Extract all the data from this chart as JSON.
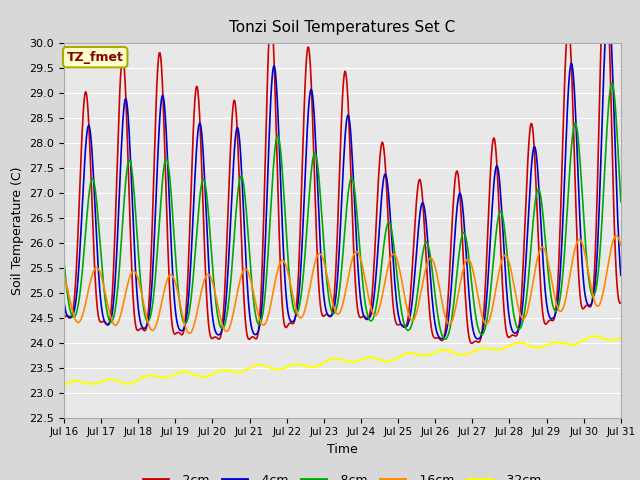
{
  "title": "Tonzi Soil Temperatures Set C",
  "xlabel": "Time",
  "ylabel": "Soil Temperature (C)",
  "annotation": "TZ_fmet",
  "annotation_bg": "#FFFFCC",
  "annotation_border": "#AAAA00",
  "annotation_color": "#880000",
  "ylim": [
    22.5,
    30.0
  ],
  "yticks": [
    22.5,
    23.0,
    23.5,
    24.0,
    24.5,
    25.0,
    25.5,
    26.0,
    26.5,
    27.0,
    27.5,
    28.0,
    28.5,
    29.0,
    29.5,
    30.0
  ],
  "xtick_labels": [
    "Jul 16",
    "Jul 17",
    "Jul 18",
    "Jul 19",
    "Jul 20",
    "Jul 21",
    "Jul 22",
    "Jul 23",
    "Jul 24",
    "Jul 25",
    "Jul 26",
    "Jul 27",
    "Jul 28",
    "Jul 29",
    "Jul 30",
    "Jul 31"
  ],
  "series": [
    {
      "label": "-2cm",
      "color": "#CC0000",
      "linewidth": 1.2
    },
    {
      "label": "-4cm",
      "color": "#0000CC",
      "linewidth": 1.2
    },
    {
      "label": "-8cm",
      "color": "#00AA00",
      "linewidth": 1.2
    },
    {
      "label": "-16cm",
      "color": "#FF8800",
      "linewidth": 1.2
    },
    {
      "label": "-32cm",
      "color": "#FFFF00",
      "linewidth": 1.5
    }
  ],
  "bg_color": "#D8D8D8",
  "plot_bg": "#E8E8E8",
  "grid_color": "#FFFFFF",
  "n_points": 720
}
